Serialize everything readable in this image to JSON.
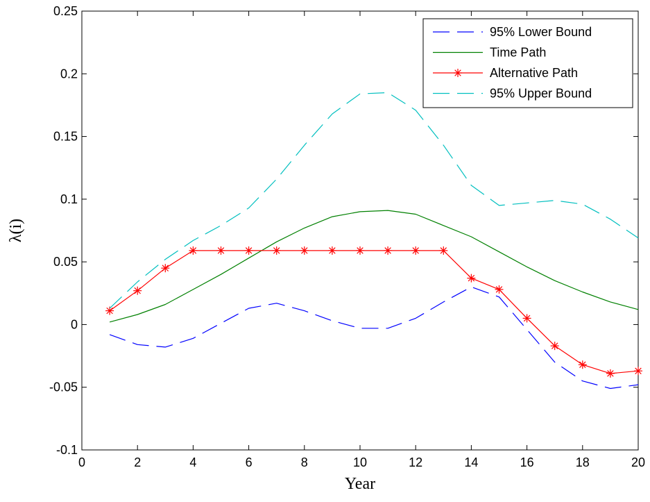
{
  "chart_data": {
    "type": "line",
    "xlabel": "Year",
    "ylabel": "λ(i)",
    "xlim": [
      0,
      20
    ],
    "ylim": [
      -0.1,
      0.25
    ],
    "xticks": [
      0,
      2,
      4,
      6,
      8,
      10,
      12,
      14,
      16,
      18,
      20
    ],
    "xtick_labels": [
      "0",
      "2",
      "4",
      "6",
      "8",
      "10",
      "12",
      "14",
      "16",
      "18",
      "20"
    ],
    "yticks": [
      -0.1,
      -0.05,
      0,
      0.05,
      0.1,
      0.15,
      0.2,
      0.25
    ],
    "ytick_labels": [
      "-0.1",
      "-0.05",
      "0",
      "0.05",
      "0.1",
      "0.15",
      "0.2",
      "0.25"
    ],
    "grid": false,
    "legend_position": "top-right",
    "series": [
      {
        "name": "95% Lower Bound",
        "color": "#0000ff",
        "style": "dashed",
        "marker": "none",
        "x": [
          1,
          2,
          3,
          4,
          5,
          6,
          7,
          8,
          9,
          10,
          11,
          12,
          13,
          14,
          15,
          16,
          17,
          18,
          19,
          20
        ],
        "y": [
          -0.008,
          -0.016,
          -0.018,
          -0.011,
          0.001,
          0.013,
          0.017,
          0.011,
          0.003,
          -0.003,
          -0.003,
          0.005,
          0.018,
          0.03,
          0.022,
          -0.004,
          -0.03,
          -0.045,
          -0.051,
          -0.048
        ]
      },
      {
        "name": "Time Path",
        "color": "#008000",
        "style": "solid",
        "marker": "none",
        "x": [
          1,
          2,
          3,
          4,
          5,
          6,
          7,
          8,
          9,
          10,
          11,
          12,
          13,
          14,
          15,
          16,
          17,
          18,
          19,
          20
        ],
        "y": [
          0.002,
          0.008,
          0.016,
          0.028,
          0.04,
          0.053,
          0.066,
          0.077,
          0.086,
          0.09,
          0.091,
          0.088,
          0.079,
          0.07,
          0.058,
          0.046,
          0.035,
          0.026,
          0.018,
          0.012
        ]
      },
      {
        "name": "Alternative Path",
        "color": "#ff0000",
        "style": "solid",
        "marker": "asterisk",
        "x": [
          1,
          2,
          3,
          4,
          5,
          6,
          7,
          8,
          9,
          10,
          11,
          12,
          13,
          14,
          15,
          16,
          17,
          18,
          19,
          20
        ],
        "y": [
          0.011,
          0.027,
          0.045,
          0.059,
          0.059,
          0.059,
          0.059,
          0.059,
          0.059,
          0.059,
          0.059,
          0.059,
          0.059,
          0.037,
          0.028,
          0.005,
          -0.017,
          -0.032,
          -0.039,
          -0.037
        ]
      },
      {
        "name": "95% Upper Bound",
        "color": "#00bfbf",
        "style": "dashed",
        "marker": "none",
        "x": [
          1,
          2,
          3,
          4,
          5,
          6,
          7,
          8,
          9,
          10,
          11,
          12,
          13,
          14,
          15,
          16,
          17,
          18,
          19,
          20
        ],
        "y": [
          0.013,
          0.034,
          0.052,
          0.067,
          0.079,
          0.093,
          0.116,
          0.143,
          0.168,
          0.184,
          0.185,
          0.171,
          0.143,
          0.111,
          0.095,
          0.097,
          0.099,
          0.096,
          0.084,
          0.069
        ]
      }
    ]
  }
}
